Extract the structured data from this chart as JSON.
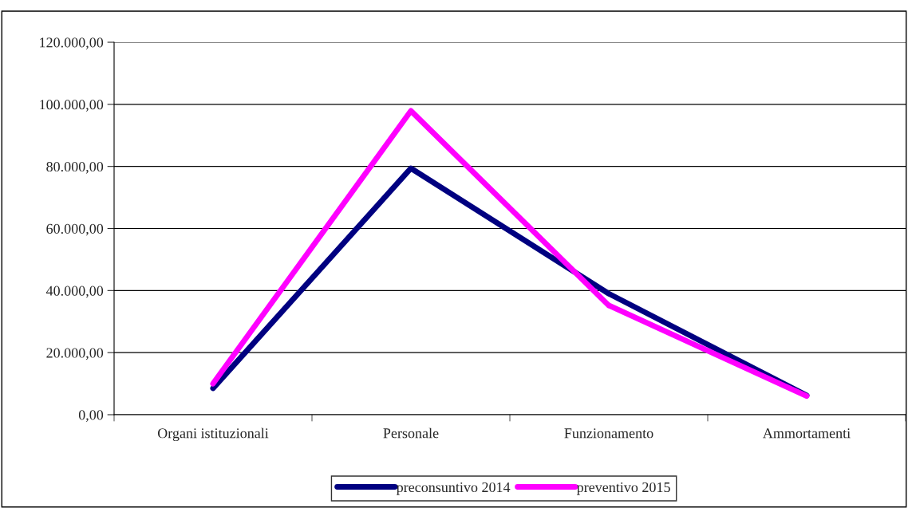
{
  "chart_data": {
    "type": "line",
    "categories": [
      "Organi istituzionali",
      "Personale",
      "Funzionamento",
      "Ammortamenti"
    ],
    "series": [
      {
        "name": "preconsuntivo 2014",
        "color": "#000080",
        "values": [
          8500,
          79400,
          39000,
          6200
        ]
      },
      {
        "name": "preventivo 2015",
        "color": "#ff00ff",
        "values": [
          10000,
          97900,
          35200,
          6000
        ]
      }
    ],
    "ylim": [
      0,
      120000
    ],
    "yticks": [
      {
        "value": 0,
        "label": "0,00"
      },
      {
        "value": 20000,
        "label": "20.000,00"
      },
      {
        "value": 40000,
        "label": "40.000,00"
      },
      {
        "value": 60000,
        "label": "60.000,00"
      },
      {
        "value": 80000,
        "label": "80.000,00"
      },
      {
        "value": 100000,
        "label": "100.000,00"
      },
      {
        "value": 120000,
        "label": "120.000,00"
      }
    ],
    "grid": "y",
    "legend": "bottom",
    "marker": "none",
    "line_style": "solid"
  }
}
